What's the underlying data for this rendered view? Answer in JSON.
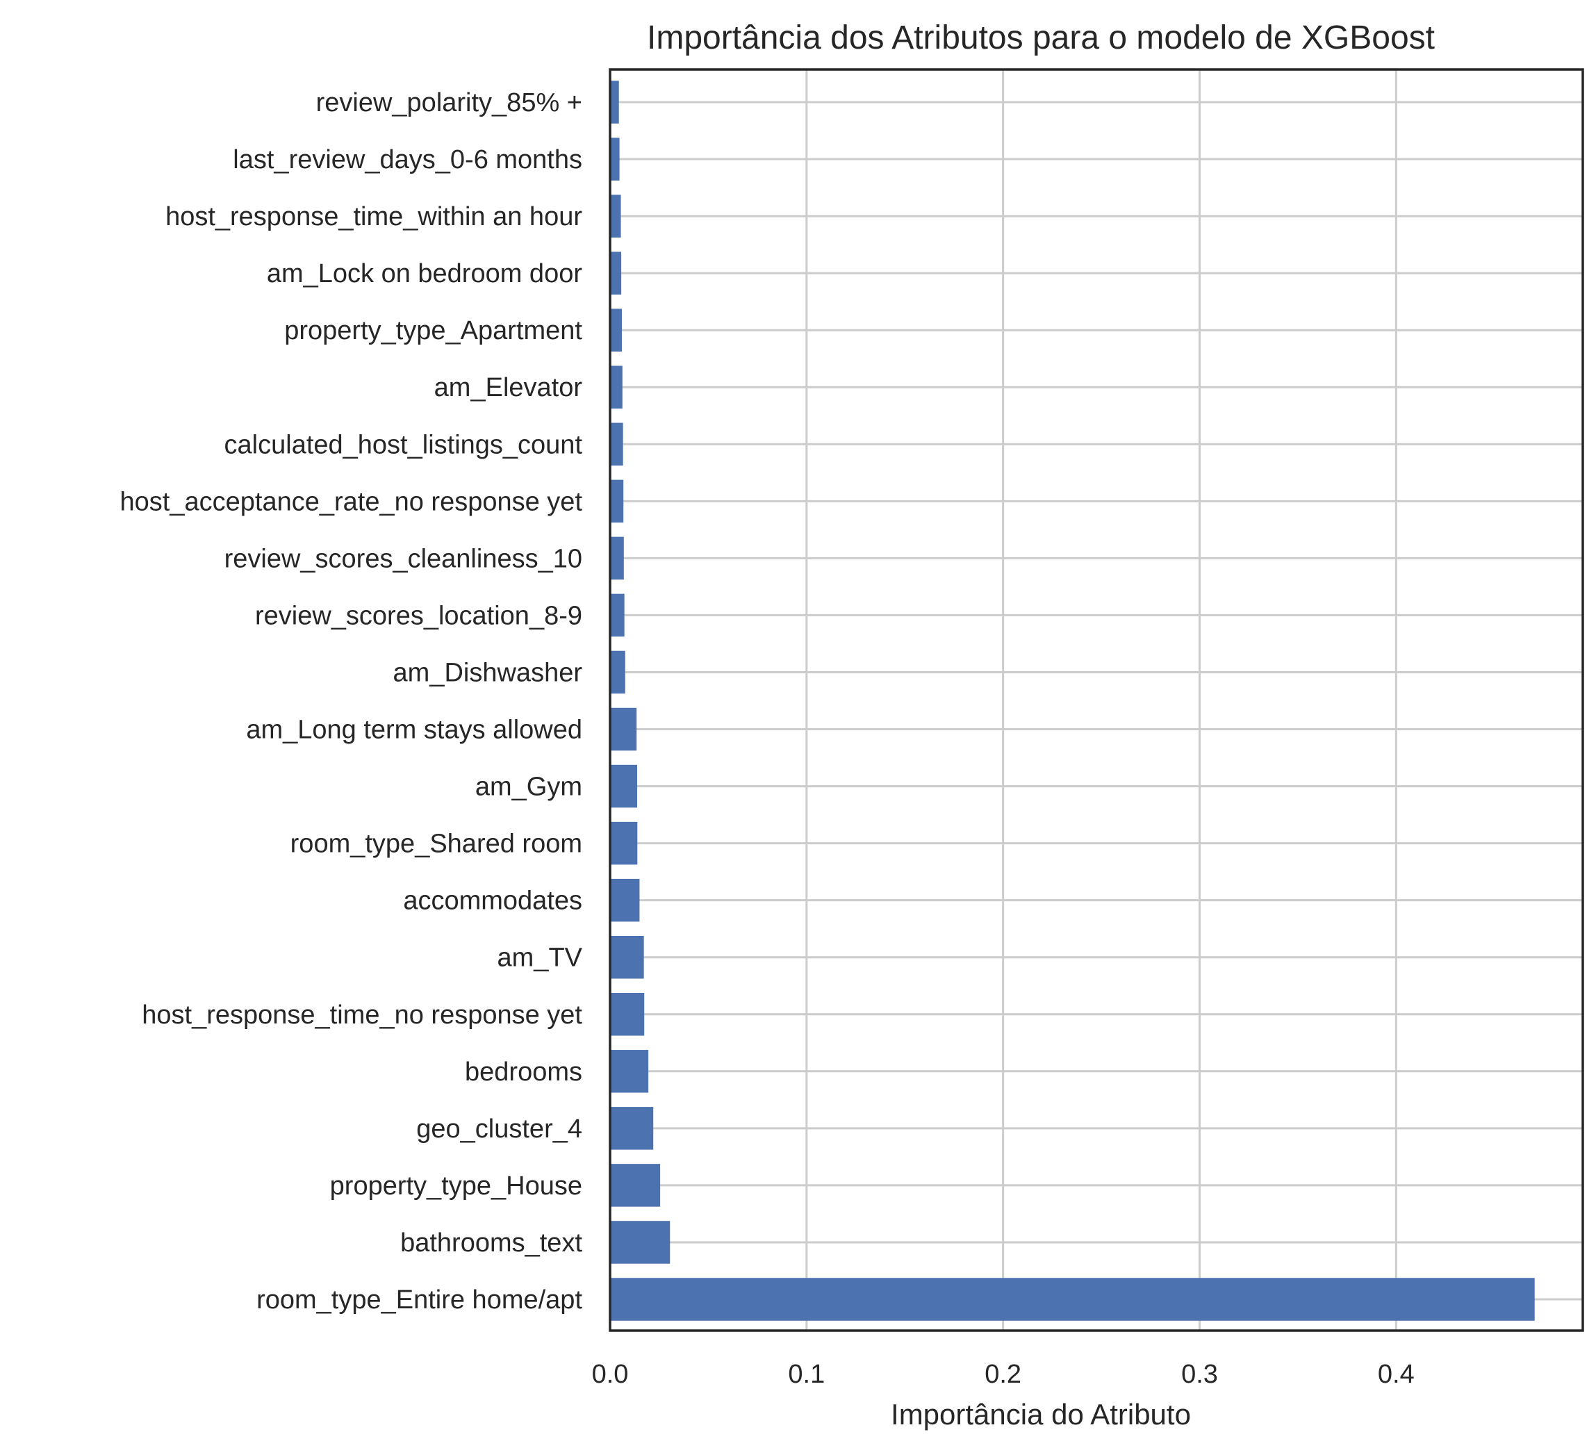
{
  "chart_data": {
    "type": "bar",
    "orientation": "horizontal",
    "title": "Importância dos Atributos para o modelo de XGBoost",
    "xlabel": "Importância do Atributo",
    "ylabel": "",
    "xlim": [
      0,
      0.495
    ],
    "xticks": [
      0.0,
      0.1,
      0.2,
      0.3,
      0.4
    ],
    "xtick_labels": [
      "0.0",
      "0.1",
      "0.2",
      "0.3",
      "0.4"
    ],
    "grid": true,
    "bar_color": "#4c72b0",
    "categories": [
      "review_polarity_85% +",
      "last_review_days_0-6 months",
      "host_response_time_within an hour",
      "am_Lock on bedroom door",
      "property_type_Apartment",
      "am_Elevator",
      "calculated_host_listings_count",
      "host_acceptance_rate_no response yet",
      "review_scores_cleanliness_10",
      "review_scores_location_8-9",
      "am_Dishwasher",
      "am_Long term stays allowed",
      "am_Gym",
      "room_type_Shared room",
      "accommodates",
      "am_TV",
      "host_response_time_no response yet",
      "bedrooms",
      "geo_cluster_4",
      "property_type_House",
      "bathrooms_text",
      "room_type_Entire home/apt"
    ],
    "values": [
      0.0045,
      0.0048,
      0.0055,
      0.0057,
      0.006,
      0.0063,
      0.0066,
      0.0068,
      0.007,
      0.0073,
      0.0077,
      0.0135,
      0.0138,
      0.0139,
      0.015,
      0.0172,
      0.0174,
      0.0195,
      0.022,
      0.0255,
      0.0305,
      0.4705
    ]
  }
}
